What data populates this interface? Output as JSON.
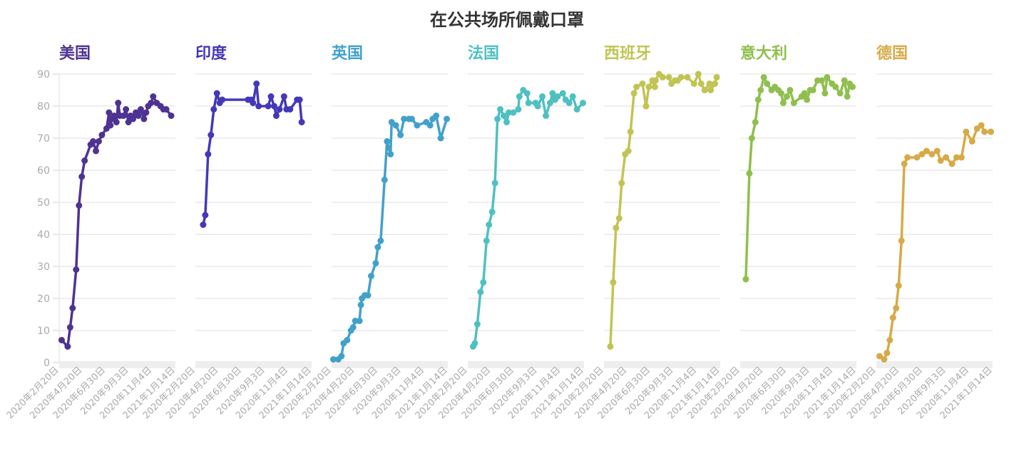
{
  "chart_data": {
    "type": "line",
    "title": "在公共场所佩戴口罩",
    "layout": "small-multiples",
    "x_unit": "days since 2020-02-20",
    "xlim": [
      0,
      329
    ],
    "ylim": [
      0,
      90
    ],
    "yticks": [
      0,
      10,
      20,
      30,
      40,
      50,
      60,
      70,
      80,
      90
    ],
    "xtick_labels": [
      "2020年2月20日",
      "2020年4月20日",
      "2020年6月30日",
      "2020年9月3日",
      "2020年11月4日",
      "2021年1月14日"
    ],
    "grid": true,
    "series": [
      {
        "name": "美国",
        "color": "#4e3392",
        "points": [
          [
            7,
            7
          ],
          [
            24,
            5
          ],
          [
            31,
            11
          ],
          [
            38,
            17
          ],
          [
            48,
            29
          ],
          [
            56,
            49
          ],
          [
            64,
            58
          ],
          [
            72,
            63
          ],
          [
            89,
            68
          ],
          [
            96,
            69
          ],
          [
            104,
            66
          ],
          [
            112,
            69
          ],
          [
            121,
            71
          ],
          [
            134,
            73
          ],
          [
            141,
            78
          ],
          [
            145,
            74
          ],
          [
            149,
            76
          ],
          [
            155,
            77
          ],
          [
            162,
            75
          ],
          [
            167,
            81
          ],
          [
            172,
            77
          ],
          [
            182,
            77
          ],
          [
            189,
            79
          ],
          [
            196,
            75
          ],
          [
            202,
            77
          ],
          [
            209,
            76
          ],
          [
            217,
            78
          ],
          [
            224,
            77
          ],
          [
            231,
            79
          ],
          [
            240,
            76
          ],
          [
            246,
            78
          ],
          [
            252,
            80
          ],
          [
            260,
            81
          ],
          [
            266,
            83
          ],
          [
            276,
            81
          ],
          [
            287,
            80
          ],
          [
            295,
            79
          ],
          [
            303,
            79
          ],
          [
            317,
            77
          ]
        ]
      },
      {
        "name": "印度",
        "color": "#4438b8",
        "points": [
          [
            22,
            43
          ],
          [
            28,
            46
          ],
          [
            36,
            65
          ],
          [
            44,
            71
          ],
          [
            52,
            79
          ],
          [
            61,
            84
          ],
          [
            69,
            81
          ],
          [
            76,
            82
          ],
          [
            149,
            82
          ],
          [
            158,
            82
          ],
          [
            163,
            81
          ],
          [
            173,
            87
          ],
          [
            179,
            80
          ],
          [
            206,
            80
          ],
          [
            214,
            83
          ],
          [
            223,
            80
          ],
          [
            229,
            77
          ],
          [
            238,
            79
          ],
          [
            251,
            83
          ],
          [
            258,
            79
          ],
          [
            268,
            79
          ],
          [
            288,
            82
          ],
          [
            295,
            82
          ],
          [
            301,
            75
          ]
        ]
      },
      {
        "name": "英国",
        "color": "#42a1cc",
        "points": [
          [
            5,
            1
          ],
          [
            19,
            1
          ],
          [
            28,
            2
          ],
          [
            34,
            6
          ],
          [
            44,
            7
          ],
          [
            55,
            10
          ],
          [
            61,
            11
          ],
          [
            67,
            13
          ],
          [
            79,
            13
          ],
          [
            83,
            18
          ],
          [
            86,
            20
          ],
          [
            94,
            21
          ],
          [
            103,
            21
          ],
          [
            112,
            27
          ],
          [
            125,
            31
          ],
          [
            131,
            36
          ],
          [
            139,
            38
          ],
          [
            150,
            57
          ],
          [
            157,
            69
          ],
          [
            161,
            67
          ],
          [
            167,
            65
          ],
          [
            170,
            75
          ],
          [
            182,
            74
          ],
          [
            195,
            71
          ],
          [
            205,
            76
          ],
          [
            219,
            76
          ],
          [
            227,
            76
          ],
          [
            242,
            74
          ],
          [
            268,
            75
          ],
          [
            279,
            74
          ],
          [
            286,
            76
          ],
          [
            296,
            77
          ],
          [
            309,
            70
          ],
          [
            326,
            76
          ]
        ]
      },
      {
        "name": "法国",
        "color": "#4fc0c1",
        "points": [
          [
            15,
            5
          ],
          [
            20,
            6
          ],
          [
            27,
            12
          ],
          [
            36,
            22
          ],
          [
            44,
            25
          ],
          [
            53,
            38
          ],
          [
            60,
            43
          ],
          [
            69,
            47
          ],
          [
            77,
            56
          ],
          [
            84,
            76
          ],
          [
            92,
            79
          ],
          [
            102,
            77
          ],
          [
            110,
            75
          ],
          [
            116,
            78
          ],
          [
            129,
            78
          ],
          [
            143,
            79
          ],
          [
            146,
            83
          ],
          [
            157,
            85
          ],
          [
            168,
            84
          ],
          [
            172,
            81
          ],
          [
            192,
            81
          ],
          [
            198,
            80
          ],
          [
            211,
            83
          ],
          [
            221,
            77
          ],
          [
            233,
            81
          ],
          [
            240,
            84
          ],
          [
            247,
            82
          ],
          [
            254,
            83
          ],
          [
            269,
            84
          ],
          [
            277,
            82
          ],
          [
            287,
            81
          ],
          [
            297,
            83
          ],
          [
            309,
            79
          ],
          [
            326,
            81
          ]
        ]
      },
      {
        "name": "西班牙",
        "color": "#c1c453",
        "points": [
          [
            18,
            5
          ],
          [
            26,
            25
          ],
          [
            34,
            42
          ],
          [
            43,
            45
          ],
          [
            50,
            56
          ],
          [
            60,
            65
          ],
          [
            69,
            66
          ],
          [
            75,
            72
          ],
          [
            85,
            84
          ],
          [
            92,
            86
          ],
          [
            109,
            87
          ],
          [
            119,
            80
          ],
          [
            127,
            86
          ],
          [
            137,
            88
          ],
          [
            144,
            86
          ],
          [
            146,
            88
          ],
          [
            156,
            90
          ],
          [
            166,
            89
          ],
          [
            184,
            89
          ],
          [
            191,
            87
          ],
          [
            201,
            88
          ],
          [
            209,
            88
          ],
          [
            218,
            89
          ],
          [
            236,
            89
          ],
          [
            255,
            87
          ],
          [
            267,
            90
          ],
          [
            275,
            87
          ],
          [
            285,
            85
          ],
          [
            299,
            87
          ],
          [
            302,
            85
          ],
          [
            314,
            87
          ],
          [
            319,
            89
          ]
        ]
      },
      {
        "name": "意大利",
        "color": "#8fbf4e",
        "points": [
          [
            16,
            26
          ],
          [
            26,
            59
          ],
          [
            33,
            70
          ],
          [
            43,
            75
          ],
          [
            51,
            82
          ],
          [
            58,
            85
          ],
          [
            67,
            89
          ],
          [
            76,
            87
          ],
          [
            89,
            85
          ],
          [
            98,
            86
          ],
          [
            108,
            85
          ],
          [
            116,
            84
          ],
          [
            122,
            81
          ],
          [
            132,
            83
          ],
          [
            141,
            85
          ],
          [
            152,
            81
          ],
          [
            174,
            83
          ],
          [
            182,
            84
          ],
          [
            189,
            82
          ],
          [
            198,
            85
          ],
          [
            206,
            85
          ],
          [
            219,
            88
          ],
          [
            231,
            88
          ],
          [
            240,
            84
          ],
          [
            246,
            89
          ],
          [
            260,
            87
          ],
          [
            270,
            86
          ],
          [
            283,
            84
          ],
          [
            295,
            88
          ],
          [
            303,
            83
          ],
          [
            310,
            87
          ],
          [
            318,
            86
          ]
        ]
      },
      {
        "name": "德国",
        "color": "#d7aa48",
        "points": [
          [
            9,
            2
          ],
          [
            22,
            1
          ],
          [
            30,
            3
          ],
          [
            38,
            7
          ],
          [
            47,
            14
          ],
          [
            56,
            17
          ],
          [
            63,
            24
          ],
          [
            71,
            38
          ],
          [
            79,
            62
          ],
          [
            88,
            64
          ],
          [
            115,
            64
          ],
          [
            129,
            65
          ],
          [
            142,
            66
          ],
          [
            157,
            65
          ],
          [
            172,
            66
          ],
          [
            182,
            63
          ],
          [
            197,
            64
          ],
          [
            214,
            62
          ],
          [
            227,
            64
          ],
          [
            241,
            64
          ],
          [
            254,
            72
          ],
          [
            271,
            69
          ],
          [
            285,
            73
          ],
          [
            297,
            74
          ],
          [
            306,
            72
          ],
          [
            324,
            72
          ]
        ]
      }
    ]
  }
}
